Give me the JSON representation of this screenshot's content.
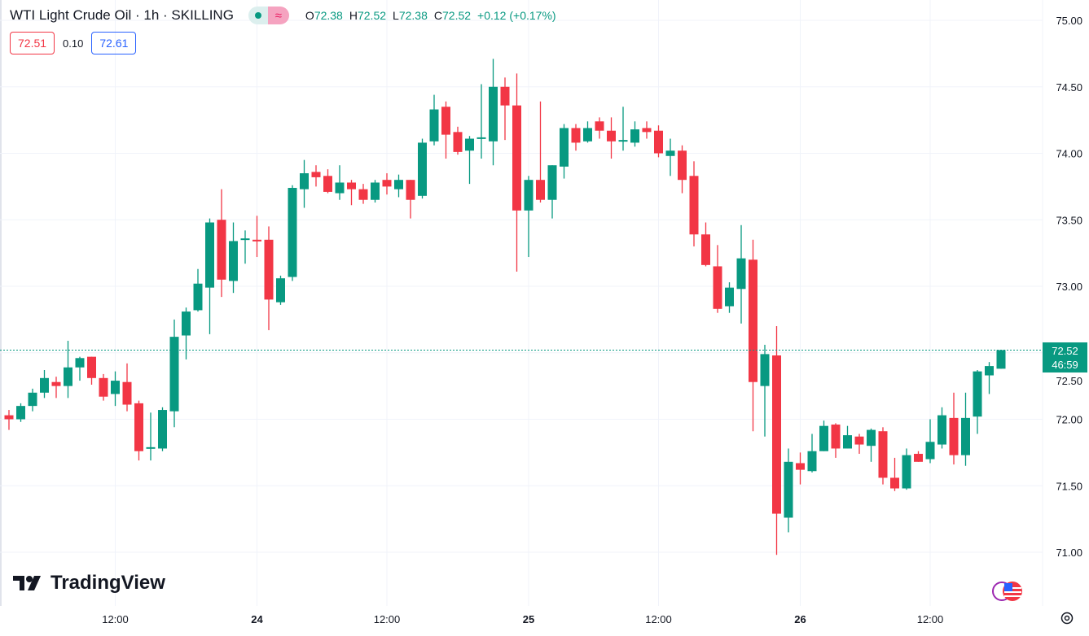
{
  "header": {
    "title": "WTI Light Crude Oil · 1h · SKILLING",
    "status_icon": "market-open-dot",
    "wave_icon": "≈",
    "ohlc": {
      "o_label": "O",
      "o": "72.38",
      "h_label": "H",
      "h": "72.52",
      "l_label": "L",
      "l": "72.38",
      "c_label": "C",
      "c": "72.52",
      "change": "+0.12 (+0.17%)"
    }
  },
  "quote": {
    "bid": "72.51",
    "spread": "0.10",
    "ask": "72.61"
  },
  "brand": {
    "name": "TradingView"
  },
  "last_price": {
    "price": "72.52",
    "countdown": "46:59"
  },
  "colors": {
    "up": "#089981",
    "down": "#f23645",
    "grid": "#f0f3fa",
    "text": "#131722"
  },
  "chart_data": {
    "type": "candlestick",
    "title": "WTI Light Crude Oil · 1h · SKILLING",
    "ylim": [
      70.8,
      75.1
    ],
    "y_ticks": [
      "75.00",
      "74.50",
      "74.00",
      "73.50",
      "73.00",
      "72.50",
      "72.00",
      "71.50",
      "71.00"
    ],
    "x_labels": [
      {
        "index": 9,
        "label": "12:00",
        "bold": false
      },
      {
        "index": 21,
        "label": "24",
        "bold": true
      },
      {
        "index": 32,
        "label": "12:00",
        "bold": false
      },
      {
        "index": 44,
        "label": "25",
        "bold": true
      },
      {
        "index": 55,
        "label": "12:00",
        "bold": false
      },
      {
        "index": 67,
        "label": "26",
        "bold": true
      },
      {
        "index": 78,
        "label": "12:00",
        "bold": false
      }
    ],
    "grid": true,
    "last_price": 72.52,
    "ohlc": [
      [
        72.03,
        72.07,
        71.92,
        72.0
      ],
      [
        72.0,
        72.12,
        71.98,
        72.1
      ],
      [
        72.1,
        72.23,
        72.06,
        72.2
      ],
      [
        72.2,
        72.37,
        72.16,
        72.31
      ],
      [
        72.28,
        72.32,
        72.16,
        72.25
      ],
      [
        72.25,
        72.59,
        72.16,
        72.39
      ],
      [
        72.39,
        72.47,
        72.29,
        72.46
      ],
      [
        72.47,
        72.47,
        72.26,
        72.31
      ],
      [
        72.31,
        72.34,
        72.14,
        72.17
      ],
      [
        72.19,
        72.36,
        72.1,
        72.29
      ],
      [
        72.28,
        72.42,
        72.06,
        72.11
      ],
      [
        72.12,
        72.14,
        71.69,
        71.76
      ],
      [
        71.78,
        72.05,
        71.69,
        71.79
      ],
      [
        71.78,
        72.09,
        71.76,
        72.07
      ],
      [
        72.06,
        72.75,
        71.94,
        72.62
      ],
      [
        72.63,
        72.84,
        72.45,
        72.81
      ],
      [
        72.82,
        73.13,
        72.81,
        73.02
      ],
      [
        72.99,
        73.51,
        72.64,
        73.48
      ],
      [
        73.5,
        73.73,
        72.92,
        73.05
      ],
      [
        73.04,
        73.48,
        72.95,
        73.34
      ],
      [
        73.35,
        73.42,
        73.17,
        73.36
      ],
      [
        73.35,
        73.53,
        73.22,
        73.34
      ],
      [
        73.35,
        73.45,
        72.67,
        72.9
      ],
      [
        72.88,
        73.08,
        72.86,
        73.06
      ],
      [
        73.07,
        73.76,
        73.04,
        73.74
      ],
      [
        73.73,
        73.95,
        73.59,
        73.85
      ],
      [
        73.86,
        73.91,
        73.75,
        73.82
      ],
      [
        73.83,
        73.88,
        73.7,
        73.71
      ],
      [
        73.7,
        73.91,
        73.65,
        73.78
      ],
      [
        73.78,
        73.8,
        73.61,
        73.73
      ],
      [
        73.73,
        73.77,
        73.62,
        73.65
      ],
      [
        73.65,
        73.8,
        73.63,
        73.78
      ],
      [
        73.8,
        73.85,
        73.69,
        73.75
      ],
      [
        73.73,
        73.84,
        73.67,
        73.8
      ],
      [
        73.8,
        73.8,
        73.51,
        73.65
      ],
      [
        73.68,
        74.11,
        73.66,
        74.08
      ],
      [
        74.09,
        74.44,
        74.06,
        74.33
      ],
      [
        74.35,
        74.39,
        73.96,
        74.14
      ],
      [
        74.16,
        74.2,
        73.99,
        74.01
      ],
      [
        74.02,
        74.13,
        73.77,
        74.11
      ],
      [
        74.11,
        74.52,
        73.96,
        74.12
      ],
      [
        74.09,
        74.71,
        73.91,
        74.5
      ],
      [
        74.5,
        74.57,
        74.1,
        74.36
      ],
      [
        74.36,
        74.6,
        73.11,
        73.57
      ],
      [
        73.57,
        73.83,
        73.22,
        73.8
      ],
      [
        73.8,
        74.39,
        73.63,
        73.65
      ],
      [
        73.65,
        73.91,
        73.51,
        73.91
      ],
      [
        73.9,
        74.22,
        73.81,
        74.19
      ],
      [
        74.19,
        74.22,
        74.02,
        74.08
      ],
      [
        74.09,
        74.24,
        74.08,
        74.19
      ],
      [
        74.24,
        74.27,
        74.11,
        74.17
      ],
      [
        74.17,
        74.27,
        73.96,
        74.09
      ],
      [
        74.09,
        74.35,
        74.02,
        74.1
      ],
      [
        74.08,
        74.24,
        74.05,
        74.18
      ],
      [
        74.19,
        74.24,
        74.11,
        74.16
      ],
      [
        74.17,
        74.21,
        73.97,
        74.0
      ],
      [
        73.98,
        74.11,
        73.83,
        74.02
      ],
      [
        74.02,
        74.06,
        73.7,
        73.8
      ],
      [
        73.83,
        73.94,
        73.3,
        73.39
      ],
      [
        73.39,
        73.48,
        73.15,
        73.16
      ],
      [
        73.15,
        73.31,
        72.8,
        72.83
      ],
      [
        72.85,
        73.03,
        72.8,
        72.99
      ],
      [
        72.98,
        73.46,
        72.72,
        73.21
      ],
      [
        73.2,
        73.35,
        71.91,
        72.28
      ],
      [
        72.25,
        72.56,
        71.87,
        72.49
      ],
      [
        72.48,
        72.7,
        70.98,
        71.29
      ],
      [
        71.26,
        71.78,
        71.15,
        71.68
      ],
      [
        71.67,
        71.75,
        71.51,
        71.62
      ],
      [
        71.61,
        71.89,
        71.6,
        71.76
      ],
      [
        71.76,
        71.99,
        71.76,
        71.95
      ],
      [
        71.96,
        71.97,
        71.71,
        71.78
      ],
      [
        71.78,
        71.95,
        71.78,
        71.88
      ],
      [
        71.87,
        71.89,
        71.74,
        71.81
      ],
      [
        71.8,
        71.93,
        71.68,
        71.92
      ],
      [
        71.91,
        71.94,
        71.51,
        71.56
      ],
      [
        71.56,
        71.71,
        71.46,
        71.48
      ],
      [
        71.48,
        71.78,
        71.47,
        71.73
      ],
      [
        71.74,
        71.76,
        71.68,
        71.68
      ],
      [
        71.7,
        72.0,
        71.67,
        71.83
      ],
      [
        71.81,
        72.09,
        71.78,
        72.03
      ],
      [
        72.01,
        72.2,
        71.66,
        71.73
      ],
      [
        71.73,
        72.2,
        71.65,
        72.01
      ],
      [
        72.02,
        72.37,
        71.89,
        72.36
      ],
      [
        72.33,
        72.43,
        72.19,
        72.4
      ],
      [
        72.38,
        72.52,
        72.38,
        72.52
      ]
    ]
  }
}
